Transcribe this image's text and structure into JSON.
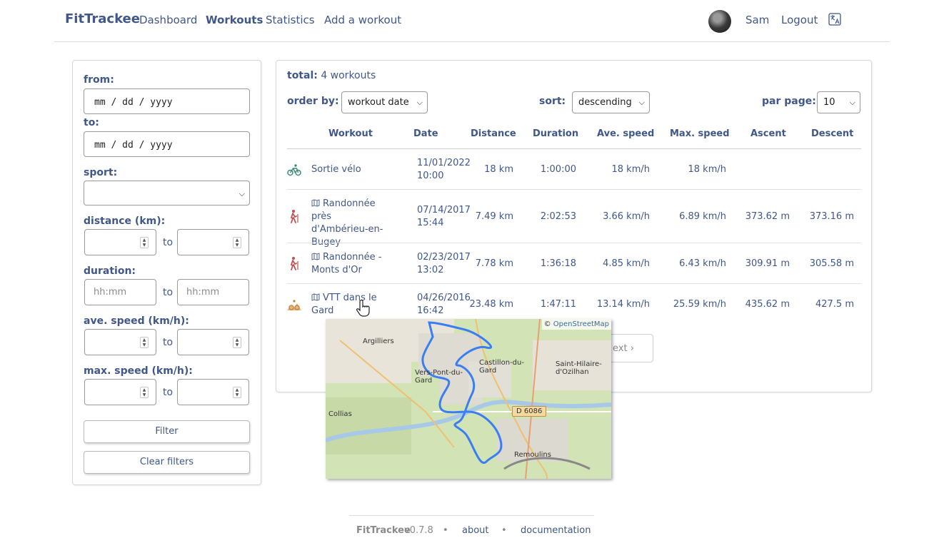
{
  "nav": {
    "brand": "FitTrackee",
    "links": [
      "Dashboard",
      "Workouts",
      "Statistics",
      "Add a workout"
    ],
    "user": "Sam",
    "logout": "Logout",
    "lang_icon": "translate-icon"
  },
  "filters": {
    "from_label": "from:",
    "from_placeholder": "mm / dd / yyyy",
    "to_label": "to:",
    "to_placeholder": "mm / dd / yyyy",
    "sport_label": "sport:",
    "sport_value": "",
    "distance_label": "distance (km):",
    "duration_label": "duration:",
    "duration_placeholder": "hh:mm",
    "ave_speed_label": "ave. speed (km/h):",
    "max_speed_label": "max. speed (km/h):",
    "to_word": "to",
    "filter_button": "Filter",
    "clear_button": "Clear filters"
  },
  "workouts": {
    "total_label": "total:",
    "total_value": "4 workouts",
    "order_by_label": "order by:",
    "order_by_value": "workout date",
    "sort_label": "sort:",
    "sort_value": "descending",
    "per_page_label": "par page:",
    "per_page_value": "10",
    "columns": [
      "Workout",
      "Date",
      "Distance",
      "Duration",
      "Ave. speed",
      "Max. speed",
      "Ascent",
      "Descent"
    ],
    "rows": [
      {
        "sport": "cycling",
        "title": "Sortie vélo",
        "date": "11/01/2022",
        "time": "10:00",
        "distance": "18 km",
        "duration": "1:00:00",
        "ave_speed": "18 km/h",
        "max_speed": "18 km/h",
        "ascent": "",
        "descent": "",
        "has_map": false
      },
      {
        "sport": "hiking",
        "title": "Randonnée près d'Ambérieu-en-Bugey",
        "date": "07/14/2017",
        "time": "15:44",
        "distance": "7.49 km",
        "duration": "2:02:53",
        "ave_speed": "3.66 km/h",
        "max_speed": "6.89 km/h",
        "ascent": "373.62 m",
        "descent": "373.16 m",
        "has_map": true
      },
      {
        "sport": "hiking",
        "title": "Randonnée - Monts d'Or",
        "date": "02/23/2017",
        "time": "13:02",
        "distance": "7.78 km",
        "duration": "1:36:18",
        "ave_speed": "4.85 km/h",
        "max_speed": "6.43 km/h",
        "ascent": "309.91 m",
        "descent": "305.58 m",
        "has_map": true
      },
      {
        "sport": "mountain-biking",
        "title": "VTT dans le Gard",
        "date": "04/26/2016",
        "time": "16:42",
        "distance": "23.48 km",
        "duration": "1:47:11",
        "ave_speed": "13.14 km/h",
        "max_speed": "25.59 km/h",
        "ascent": "435.62 m",
        "descent": "427.5 m",
        "has_map": true
      }
    ],
    "next_label": "ext"
  },
  "map": {
    "attribution_prefix": "©",
    "attribution_link": "OpenStreetMap",
    "places": [
      "Argilliers",
      "Vers-Pont-du-Gard",
      "Castillon-du-Gard",
      "Saint-Hilaire-d'Ozilhan",
      "Collias",
      "Remoulins"
    ],
    "road": "D 6086",
    "route_color": "#3b7ef3"
  },
  "footer": {
    "brand": "FitTrackee",
    "version": "v0.7.8",
    "sep": "•",
    "about": "about",
    "documentation": "documentation"
  },
  "colors": {
    "primary_text": "#40578a",
    "sport_icon": "#c0504d",
    "cycling_icon": "#3a8a7a"
  }
}
